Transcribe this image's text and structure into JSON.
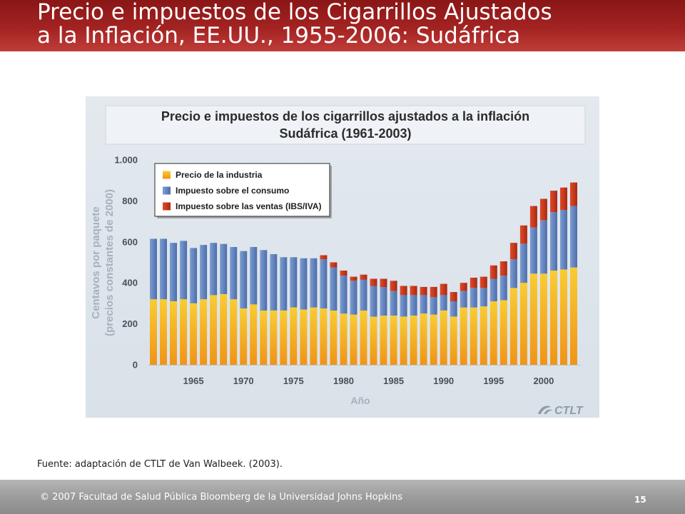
{
  "slide": {
    "title": [
      "Precio e impuestos de los Cigarrillos Ajustados",
      "a la Inflación, EE.UU., 1955-2006: Sudáfrica"
    ],
    "source": "Fuente: adaptación de CTLT de Van Walbeek. (2003).",
    "footer": "© 2007 Facultad de Salud Pública Bloomberg de la Universidad Johns Hopkins",
    "page_number": "15"
  },
  "colors": {
    "header_red": "#a32322",
    "footer_grey": "#9c9c9c",
    "chart_background": "#dfe5ec",
    "axis_title": "#a7b1bc"
  },
  "chart_data": {
    "type": "bar",
    "stacked": true,
    "title": "Precio e impuestos de los cigarrillos ajustados a la inflación",
    "subtitle": "Sudáfrica (1961-2003)",
    "xlabel": "Año",
    "ylabel": [
      "Centavos por paquete",
      "(precios constantes de 2000)"
    ],
    "ylim": [
      0,
      1000
    ],
    "yticks": [
      0,
      200,
      400,
      600,
      800,
      1000
    ],
    "ytick_labels": [
      "0",
      "200",
      "400",
      "600",
      "800",
      "1.000"
    ],
    "xticks": [
      1965,
      1970,
      1975,
      1980,
      1985,
      1990,
      1995,
      2000
    ],
    "grid": false,
    "legend_position": "top-left",
    "categories": [
      1961,
      1962,
      1963,
      1964,
      1965,
      1966,
      1967,
      1968,
      1969,
      1970,
      1971,
      1972,
      1973,
      1974,
      1975,
      1976,
      1977,
      1978,
      1979,
      1980,
      1981,
      1982,
      1983,
      1984,
      1985,
      1986,
      1987,
      1988,
      1989,
      1990,
      1991,
      1992,
      1993,
      1994,
      1995,
      1996,
      1997,
      1998,
      1999,
      2000,
      2001,
      2002,
      2003
    ],
    "series": [
      {
        "name": "Precio de la industria",
        "color": "#f4b122",
        "values": [
          320,
          320,
          310,
          320,
          300,
          320,
          340,
          345,
          320,
          275,
          295,
          265,
          265,
          265,
          280,
          270,
          280,
          275,
          265,
          250,
          245,
          265,
          235,
          240,
          240,
          235,
          240,
          250,
          245,
          265,
          235,
          280,
          280,
          285,
          310,
          315,
          375,
          400,
          445,
          445,
          460,
          465,
          475
        ]
      },
      {
        "name": "Impuesto sobre el consumo",
        "color": "#6485bf",
        "values": [
          295,
          295,
          285,
          285,
          270,
          265,
          255,
          245,
          255,
          280,
          280,
          295,
          275,
          260,
          245,
          250,
          240,
          240,
          210,
          185,
          165,
          150,
          150,
          140,
          120,
          105,
          100,
          90,
          85,
          75,
          75,
          80,
          95,
          90,
          110,
          120,
          140,
          190,
          225,
          260,
          285,
          290,
          300
        ]
      },
      {
        "name": "Impuesto sobre las ventas (IBS/IVA)",
        "color": "#c83a1d",
        "values": [
          0,
          0,
          0,
          0,
          0,
          0,
          0,
          0,
          0,
          0,
          0,
          0,
          0,
          0,
          0,
          0,
          0,
          20,
          25,
          25,
          20,
          25,
          35,
          40,
          50,
          45,
          45,
          40,
          50,
          55,
          45,
          40,
          50,
          55,
          65,
          70,
          80,
          90,
          105,
          105,
          105,
          110,
          115
        ]
      }
    ],
    "logo": "CTLT"
  }
}
